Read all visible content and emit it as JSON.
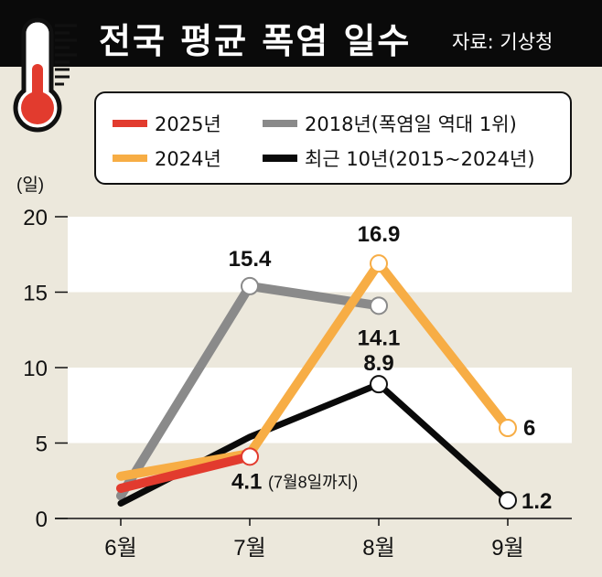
{
  "header": {
    "title": "전국 평균 폭염 일수",
    "source": "자료: 기상청"
  },
  "colors": {
    "2025": "#e23b2e",
    "2024": "#f7ad45",
    "2018": "#8a8a8a",
    "avg": "#0a0a0a",
    "band": "#ffffff"
  },
  "chart_data": {
    "type": "line",
    "title": "전국 평균 폭염 일수",
    "ylabel": "(일)",
    "xlabel": "",
    "categories": [
      "6월",
      "7월",
      "8월",
      "9월"
    ],
    "ylim": [
      0,
      20
    ],
    "yticks": [
      "0",
      "5",
      "10",
      "15",
      "20"
    ],
    "legend": "top",
    "series": [
      {
        "key": "2018",
        "name": "2018년(폭염일 역대 1위)",
        "values": [
          1.5,
          15.4,
          14.1,
          null
        ],
        "labels": [
          null,
          "15.4",
          "14.1",
          null
        ]
      },
      {
        "key": "avg",
        "name": "최근 10년(2015~2024년)",
        "values": [
          1.0,
          5.4,
          8.9,
          1.2
        ],
        "labels": [
          null,
          null,
          "8.9",
          "1.2"
        ]
      },
      {
        "key": "2024",
        "name": "2024년",
        "values": [
          2.8,
          4.3,
          16.9,
          6
        ],
        "labels": [
          null,
          null,
          "16.9",
          "6"
        ]
      },
      {
        "key": "2025",
        "name": "2025년",
        "values": [
          2.0,
          4.1,
          null,
          null
        ],
        "labels": [
          null,
          "4.1",
          null,
          null
        ]
      }
    ],
    "annotation": "(7월8일까지)"
  }
}
